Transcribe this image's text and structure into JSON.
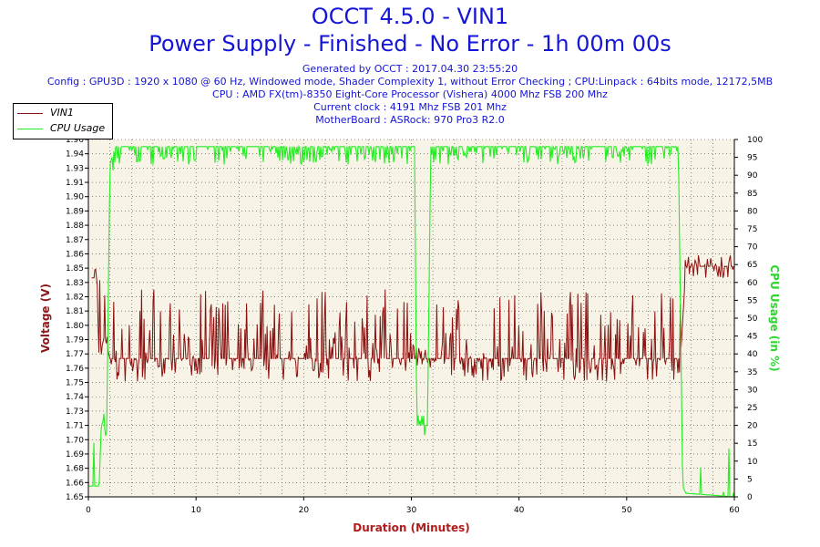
{
  "header": {
    "title": "OCCT 4.5.0 - VIN1",
    "subtitle": "Power Supply - Finished - No Error - 1h 00m 00s",
    "generated": "Generated by OCCT : 2017.04.30 23:55:20",
    "config": "Config : GPU3D : 1920 x 1080 @ 60 Hz, Windowed mode, Shader Complexity 1, without Error Checking ; CPU:Linpack : 64bits mode, 12172,5MB",
    "cpu": "CPU : AMD FX(tm)-8350 Eight-Core Processor (Vishera) 4000 Mhz FSB 200 Mhz",
    "clock": "Current clock : 4191 Mhz FSB 201 Mhz",
    "motherboard": "MotherBoard : ASRock: 970 Pro3 R2.0"
  },
  "colors": {
    "vin1": "#8b1010",
    "cpu": "#22ee22",
    "plot_bg": "#f7f3e6",
    "grid": "#444444",
    "ylabel_left": "#8b1a1a",
    "ylabel_right": "#2dd62d",
    "xlabel": "#b01c1c"
  },
  "chart_data": {
    "type": "line",
    "xlabel": "Duration (Minutes)",
    "ylabel": "Voltage (V)",
    "ylabel_right": "CPU Usage (in %)",
    "xlim": [
      0,
      60
    ],
    "ylim": [
      1.65,
      1.96
    ],
    "ylim_right": [
      0,
      100
    ],
    "x_ticks": [
      "0",
      "10",
      "20",
      "30",
      "40",
      "50",
      "60"
    ],
    "y_ticks": [
      "1.65",
      "1.66",
      "1.68",
      "1.69",
      "1.70",
      "1.71",
      "1.73",
      "1.74",
      "1.75",
      "1.76",
      "1.77",
      "1.79",
      "1.80",
      "1.81",
      "1.82",
      "1.83",
      "1.85",
      "1.86",
      "1.87",
      "1.88",
      "1.89",
      "1.90",
      "1.91",
      "1.93",
      "1.94",
      "1.96"
    ],
    "y_ticks_right": [
      "0",
      "5",
      "10",
      "15",
      "20",
      "25",
      "30",
      "35",
      "40",
      "45",
      "50",
      "55",
      "60",
      "65",
      "70",
      "75",
      "80",
      "85",
      "90",
      "95",
      "100"
    ],
    "grid": true,
    "legend_position": "top-left",
    "series": [
      {
        "name": "VIN1",
        "axis": "left",
        "x": [
          0.3,
          0.8,
          1.0,
          1.5,
          2,
          5,
          10,
          15,
          20,
          25,
          29.5,
          30.3,
          31,
          31.6,
          32,
          35,
          40,
          45,
          50,
          54.5,
          55,
          55.5,
          58,
          60
        ],
        "y": [
          1.84,
          1.84,
          1.77,
          1.79,
          1.77,
          1.77,
          1.77,
          1.77,
          1.77,
          1.77,
          1.77,
          1.77,
          1.77,
          1.77,
          1.77,
          1.77,
          1.77,
          1.77,
          1.77,
          1.77,
          1.77,
          1.85,
          1.85,
          1.85
        ],
        "min": [
          1.84,
          1.84,
          1.76,
          1.76,
          1.75,
          1.75,
          1.75,
          1.75,
          1.75,
          1.75,
          1.75,
          1.76,
          1.76,
          1.76,
          1.75,
          1.75,
          1.75,
          1.75,
          1.75,
          1.75,
          1.75,
          1.84,
          1.84,
          1.84
        ],
        "max": [
          1.85,
          1.85,
          1.85,
          1.83,
          1.83,
          1.83,
          1.83,
          1.83,
          1.83,
          1.83,
          1.83,
          1.78,
          1.78,
          1.78,
          1.83,
          1.83,
          1.83,
          1.83,
          1.83,
          1.83,
          1.83,
          1.86,
          1.86,
          1.86
        ]
      },
      {
        "name": "CPU Usage",
        "axis": "right",
        "x": [
          0,
          1.0,
          1.2,
          1.5,
          1.7,
          2.0,
          2.5,
          5,
          10,
          20,
          30,
          30.3,
          30.5,
          31.5,
          31.8,
          32.5,
          40,
          50,
          54.8,
          55.2,
          55.5,
          60
        ],
        "y": [
          3,
          3,
          20,
          22,
          18,
          93,
          98,
          98,
          98,
          98,
          98,
          98,
          20,
          20,
          98,
          98,
          98,
          98,
          98,
          3,
          1,
          0
        ]
      }
    ]
  }
}
